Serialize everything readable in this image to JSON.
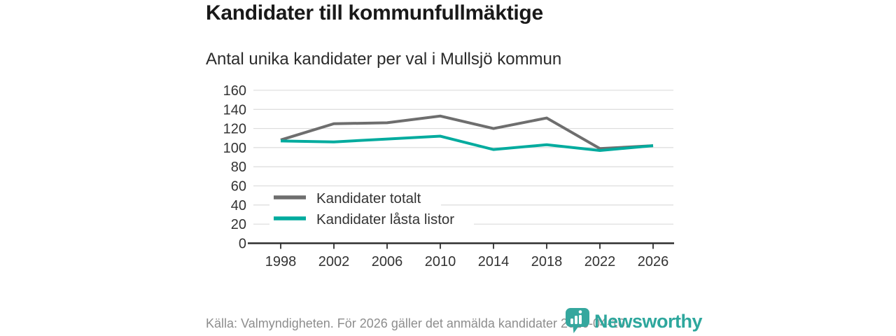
{
  "title": "Kandidater till kommunfullmäktige",
  "subtitle": "Antal unika kandidater per val i Mullsjö kommun",
  "footer": {
    "source": "Källa: Valmyndigheten. För 2026 gäller det anmälda kandidater 2026-04-10."
  },
  "branding": {
    "name": "Newsworthy",
    "color": "#2ea79d",
    "icon": "newsworthy-speech-bubble-barchart-icon"
  },
  "chart_data": {
    "type": "line",
    "x": [
      1998,
      2002,
      2006,
      2010,
      2014,
      2018,
      2022,
      2026
    ],
    "series": [
      {
        "name": "Kandidater totalt",
        "color": "#6e6e6e",
        "values": [
          108,
          125,
          126,
          133,
          120,
          131,
          99,
          102
        ]
      },
      {
        "name": "Kandidater låsta listor",
        "color": "#00ab9e",
        "values": [
          107,
          106,
          109,
          112,
          98,
          103,
          97,
          102
        ]
      }
    ],
    "ylim": [
      0,
      160
    ],
    "yticks": [
      0,
      20,
      40,
      60,
      80,
      100,
      120,
      140,
      160
    ],
    "grid": true,
    "gridline_color": "#dcdcdc",
    "axis_color": "#2e2e2e",
    "label_color": "#333333",
    "legend_position": "inside-lower-left"
  }
}
